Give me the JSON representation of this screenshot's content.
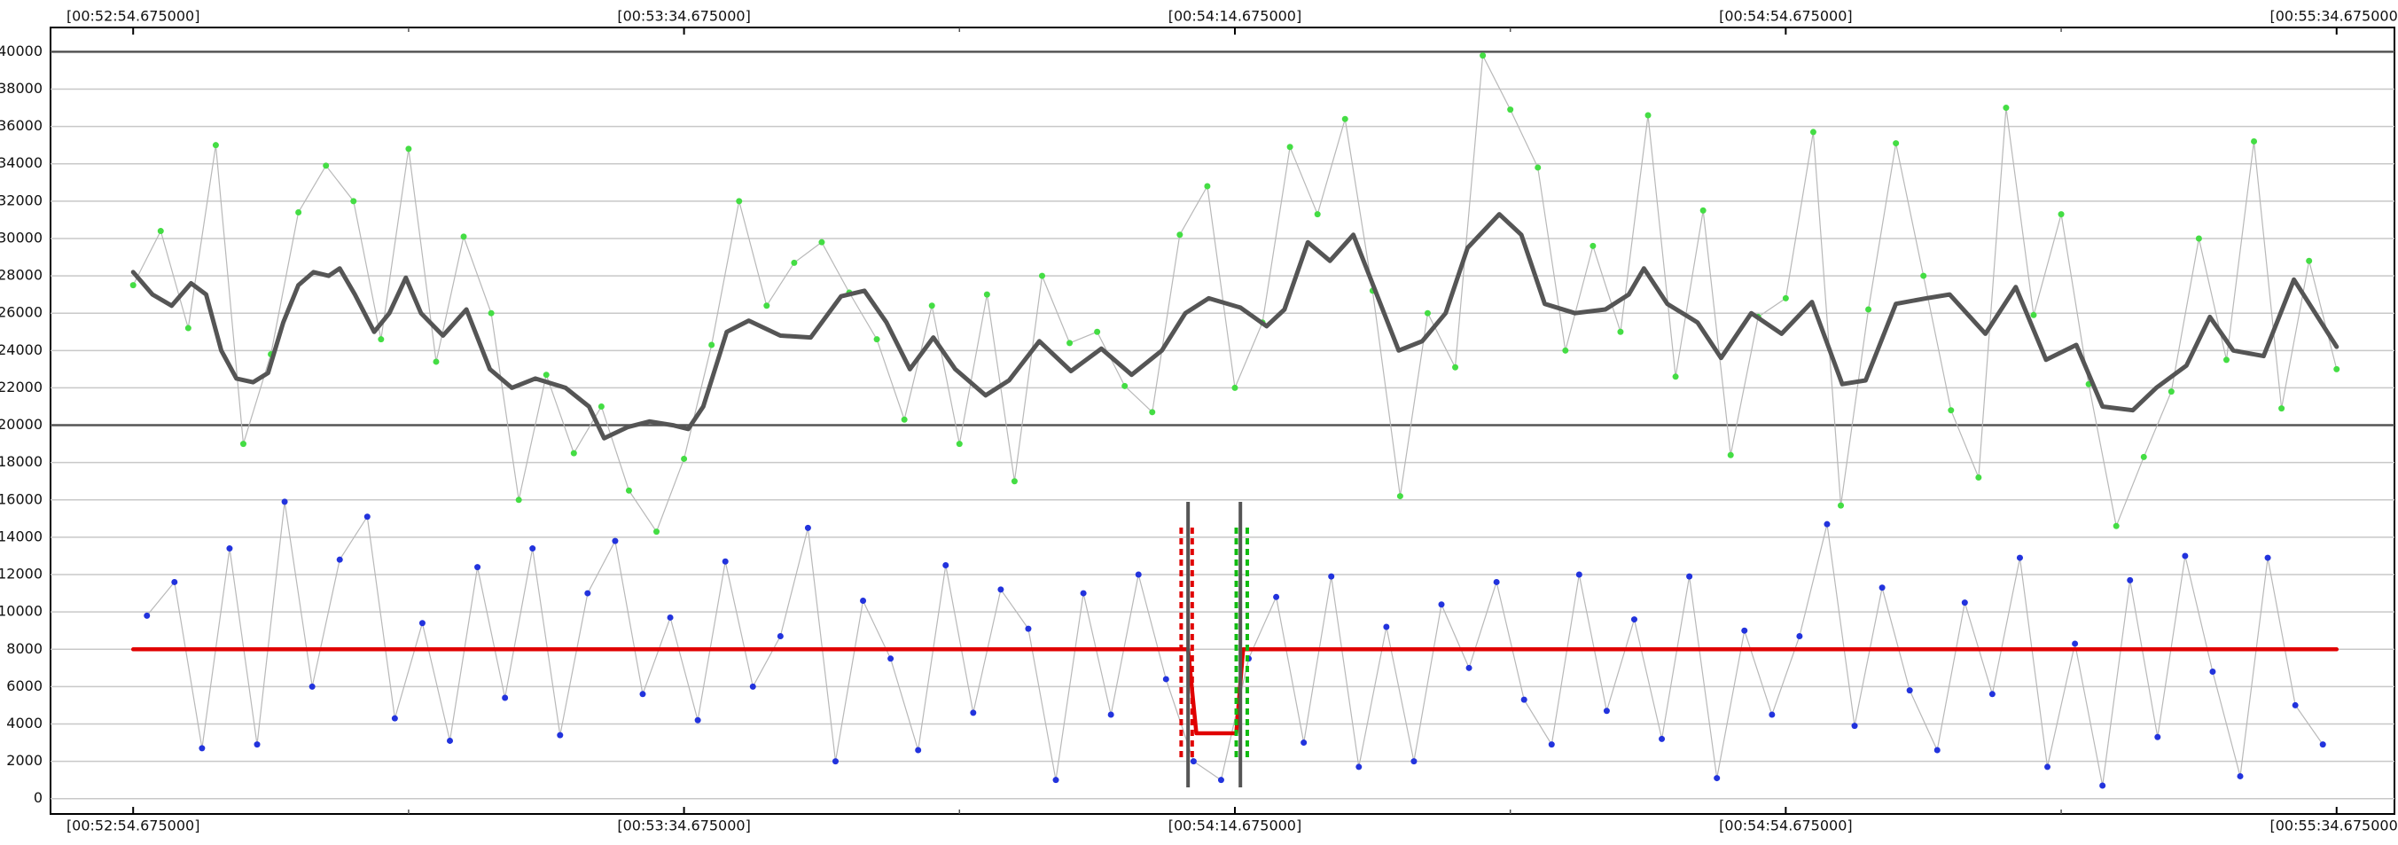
{
  "chart_data": {
    "type": "line",
    "xlim": [
      -6,
      164.2
    ],
    "ylim": [
      -820,
      41300
    ],
    "xticks": [
      {
        "value": 0,
        "label": "[00:52:54.675000]"
      },
      {
        "value": 40,
        "label": "[00:53:34.675000]"
      },
      {
        "value": 80,
        "label": "[00:54:14.675000]"
      },
      {
        "value": 120,
        "label": "[00:54:54.675000]"
      },
      {
        "value": 160,
        "label": "[00:55:34.675000]"
      }
    ],
    "xminorticks": [
      20,
      60,
      100,
      140
    ],
    "yticks": [
      0,
      2000,
      4000,
      6000,
      8000,
      10000,
      12000,
      14000,
      16000,
      18000,
      20000,
      22000,
      24000,
      26000,
      28000,
      30000,
      32000,
      34000,
      36000,
      38000,
      40000
    ],
    "dark_grid_step": 20000,
    "grid": true,
    "series": [
      {
        "name": "green",
        "color": "#44dd44",
        "style": "points",
        "x": [
          0,
          2,
          4,
          6,
          8,
          10,
          12,
          14,
          16,
          18,
          20,
          22,
          24,
          26,
          28,
          30,
          32,
          34,
          36,
          38,
          40,
          42,
          44,
          46,
          48,
          50,
          52,
          54,
          56,
          58,
          60,
          62,
          64,
          66,
          68,
          70,
          72,
          74,
          76,
          78,
          80,
          82,
          84,
          86,
          88,
          90,
          92,
          94,
          96,
          98,
          100,
          102,
          104,
          106,
          108,
          110,
          112,
          114,
          116,
          118,
          120,
          122,
          124,
          126,
          128,
          130,
          132,
          134,
          136,
          138,
          140,
          142,
          144,
          146,
          148,
          150,
          152,
          154,
          156,
          158,
          160
        ],
        "values": [
          27500,
          30400,
          25200,
          35000,
          19000,
          23800,
          31400,
          33900,
          32000,
          24600,
          34800,
          23400,
          30100,
          26000,
          16000,
          22700,
          18500,
          21000,
          16500,
          14300,
          18200,
          24300,
          32000,
          26400,
          28700,
          29800,
          27100,
          24600,
          20300,
          26400,
          19000,
          27000,
          17000,
          28000,
          24400,
          25000,
          22100,
          20700,
          30200,
          32800,
          22000,
          25500,
          34900,
          31300,
          36400,
          27200,
          16200,
          26000,
          23100,
          39800,
          36900,
          33800,
          24000,
          29600,
          25000,
          36600,
          22600,
          31500,
          18400,
          25800,
          26800,
          35700,
          15700,
          26200,
          35100,
          28000,
          20800,
          17200,
          37000,
          25900,
          31300,
          22200,
          14600,
          18300,
          21800,
          30000,
          23500,
          35200,
          20900,
          28800,
          23000
        ]
      },
      {
        "name": "blue",
        "color": "#2233dd",
        "style": "points",
        "x": [
          1,
          3,
          5,
          7,
          9,
          11,
          13,
          15,
          17,
          19,
          21,
          23,
          25,
          27,
          29,
          31,
          33,
          35,
          37,
          39,
          41,
          43,
          45,
          47,
          49,
          51,
          53,
          55,
          57,
          59,
          61,
          63,
          65,
          67,
          69,
          71,
          73,
          75,
          77,
          79,
          81,
          83,
          85,
          87,
          89,
          91,
          93,
          95,
          97,
          99,
          101,
          103,
          105,
          107,
          109,
          111,
          113,
          115,
          117,
          119,
          121,
          123,
          125,
          127,
          129,
          131,
          133,
          135,
          137,
          139,
          141,
          143,
          145,
          147,
          149,
          151,
          153,
          155,
          157,
          159
        ],
        "values": [
          9800,
          11600,
          2700,
          13400,
          2900,
          15900,
          6000,
          12800,
          15100,
          4300,
          9400,
          3100,
          12400,
          5400,
          13400,
          3400,
          11000,
          13800,
          5600,
          9700,
          4200,
          12700,
          6000,
          8700,
          14500,
          2000,
          10600,
          7500,
          2600,
          12500,
          4600,
          11200,
          9100,
          1000,
          11000,
          4500,
          12000,
          6400,
          2000,
          1000,
          7500,
          10800,
          3000,
          11900,
          1700,
          9200,
          2000,
          10400,
          7000,
          11600,
          5300,
          2900,
          12000,
          4700,
          9600,
          3200,
          11900,
          1100,
          9000,
          4500,
          8700,
          14700,
          3900,
          11300,
          5800,
          2600,
          10500,
          5600,
          12900,
          1700,
          8300,
          700,
          11700,
          3300,
          13000,
          6800,
          1200,
          12900,
          5000,
          2900
        ]
      },
      {
        "name": "smooth",
        "color": "#555555",
        "style": "thick",
        "x": [
          0,
          1.4,
          2.8,
          4.2,
          5.3,
          6.4,
          7.5,
          8.7,
          9.8,
          10.9,
          12,
          13.1,
          14.2,
          15,
          16.1,
          17.5,
          18.6,
          19.8,
          20.9,
          22.5,
          24.2,
          25.9,
          27.5,
          29.2,
          31.4,
          33.1,
          34.2,
          35.9,
          37.5,
          39.2,
          40.3,
          41.4,
          43.1,
          44.7,
          47,
          49.2,
          51.4,
          53.1,
          54.7,
          56.4,
          58.1,
          59.7,
          61.9,
          63.6,
          65.8,
          68.1,
          70.3,
          72.5,
          74.7,
          76.4,
          78.1,
          80.4,
          82.3,
          83.6,
          85.3,
          86.9,
          88.6,
          90.3,
          91.9,
          93.6,
          95.3,
          96.9,
          99.2,
          100.8,
          102.5,
          104.7,
          106.9,
          108.6,
          109.7,
          111.4,
          113.6,
          115.3,
          117.5,
          119.7,
          121.9,
          124.1,
          125.8,
          128,
          130.2,
          131.9,
          134.5,
          136.7,
          138.9,
          141.1,
          143,
          145.2,
          146.9,
          149.1,
          150.8,
          152.5,
          154.7,
          156.9,
          160
        ],
        "values": [
          28200,
          27000,
          26400,
          27600,
          27000,
          24000,
          22500,
          22300,
          22800,
          25500,
          27500,
          28200,
          28000,
          28400,
          27000,
          25000,
          26000,
          27900,
          26000,
          24800,
          26200,
          23000,
          22000,
          22500,
          22000,
          21000,
          19300,
          19900,
          20200,
          20000,
          19800,
          21000,
          25000,
          25600,
          24800,
          24700,
          26900,
          27200,
          25500,
          23000,
          24700,
          23000,
          21600,
          22400,
          24500,
          22900,
          24100,
          22700,
          24000,
          26000,
          26800,
          26300,
          25300,
          26200,
          29800,
          28800,
          30200,
          27000,
          24000,
          24500,
          26000,
          29500,
          31300,
          30200,
          26500,
          26000,
          26200,
          27000,
          28400,
          26500,
          25500,
          23600,
          26000,
          24900,
          26600,
          22200,
          22400,
          26500,
          26800,
          27000,
          24900,
          27400,
          23500,
          24300,
          21000,
          20800,
          22000,
          23200,
          25800,
          24000,
          23700,
          27800,
          24200
        ]
      },
      {
        "name": "threshold",
        "color": "#e00000",
        "style": "step",
        "x": [
          0,
          76.6,
          77.2,
          80.1,
          80.6,
          160
        ],
        "values": [
          8000,
          8000,
          3500,
          3500,
          8000,
          8000
        ]
      }
    ],
    "cursors": [
      76.6,
      80.4
    ],
    "red_bounds": [
      76.1,
      76.9
    ],
    "green_bounds": [
      80.1,
      80.9
    ]
  }
}
